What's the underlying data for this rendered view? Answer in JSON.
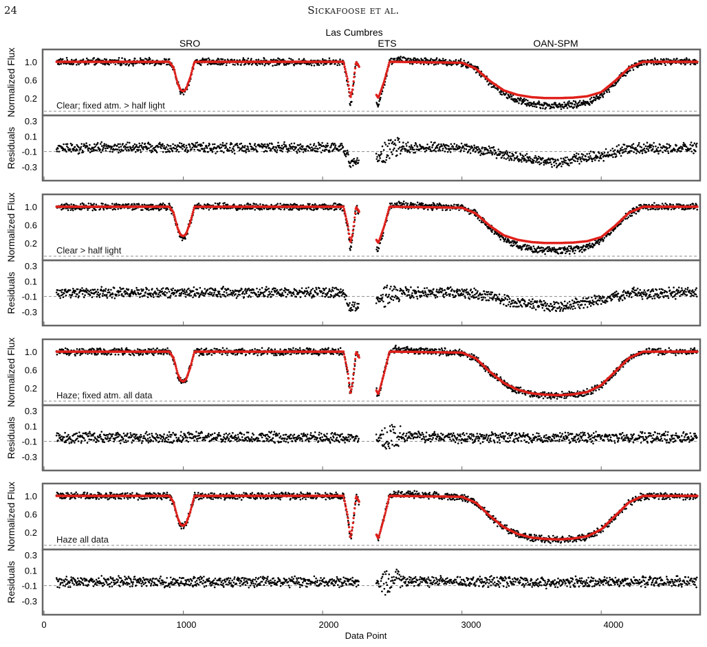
{
  "header": {
    "page_number": "24",
    "running_head": "Sickafoose et al."
  },
  "figure": {
    "site_labels": [
      "Las Cumbres",
      "SRO",
      "ETS",
      "OAN-SPM"
    ],
    "xlabel": "Data Point",
    "x_ticks": [
      "0",
      "1000",
      "2000",
      "3000",
      "4000"
    ],
    "flux_ylabel": "Normalized Flux",
    "resid_ylabel": "Residuals",
    "flux_ticks": [
      "1.0",
      "0.6",
      "0.2"
    ],
    "resid_ticks": [
      "0.3",
      "0.1",
      "-0.1",
      "-0.3"
    ],
    "panel_labels": [
      "Clear; fixed atm.  > half light",
      "Clear  > half light",
      "Haze; fixed atm. all data",
      "Haze all data"
    ]
  },
  "colors": {
    "data": "#000000",
    "model": "#e0201b",
    "frame": "#666666",
    "dash": "#888888"
  },
  "chart_data": [
    {
      "type": "scatter",
      "title": "Clear; fixed atm.  > half light",
      "xlabel": "",
      "ylabel": "Normalized Flux",
      "xlim": [
        0,
        4700
      ],
      "ylim": [
        0.0,
        1.15
      ],
      "series": [
        {
          "kind": "data",
          "x": [
            100,
            900,
            930,
            960,
            980,
            1000,
            1020,
            1050,
            1080,
            2150,
            2180,
            2200,
            2215,
            2240,
            2400,
            2440,
            2480,
            2520,
            3000,
            3100,
            3200,
            3300,
            3400,
            3500,
            3600,
            3700,
            3800,
            3900,
            4000,
            4100,
            4200,
            4300,
            4700
          ],
          "y": [
            1.0,
            1.0,
            0.85,
            0.5,
            0.36,
            0.33,
            0.38,
            0.65,
            1.0,
            1.0,
            0.55,
            0.05,
            0.3,
            1.0,
            0.05,
            0.5,
            1.0,
            1.05,
            0.98,
            0.85,
            0.55,
            0.3,
            0.15,
            0.07,
            0.04,
            0.03,
            0.05,
            0.1,
            0.25,
            0.55,
            0.85,
            1.0,
            1.0
          ]
        },
        {
          "kind": "model",
          "x": [
            100,
            900,
            930,
            960,
            980,
            1000,
            1020,
            1050,
            1080,
            2150,
            2180,
            2200,
            2215,
            2240,
            2400,
            2440,
            2480,
            2520,
            3000,
            3100,
            3200,
            3300,
            3400,
            3500,
            3600,
            3700,
            3800,
            3900,
            4000,
            4100,
            4200,
            4300,
            4700
          ],
          "y": [
            1.0,
            1.0,
            0.87,
            0.52,
            0.38,
            0.35,
            0.4,
            0.66,
            1.0,
            1.0,
            0.6,
            0.2,
            0.4,
            1.0,
            0.2,
            0.55,
            1.0,
            1.0,
            0.98,
            0.85,
            0.58,
            0.37,
            0.27,
            0.22,
            0.2,
            0.2,
            0.21,
            0.24,
            0.33,
            0.58,
            0.87,
            1.0,
            1.0
          ]
        },
        {
          "kind": "residual",
          "x": [
            100,
            900,
            1000,
            2150,
            2200,
            2400,
            2500,
            3000,
            3200,
            3400,
            3600,
            3700,
            3800,
            4000,
            4200,
            4700
          ],
          "y": [
            -0.05,
            -0.05,
            -0.05,
            -0.05,
            -0.25,
            -0.15,
            -0.05,
            -0.05,
            -0.1,
            -0.18,
            -0.22,
            -0.24,
            -0.2,
            -0.15,
            -0.06,
            -0.05
          ]
        }
      ]
    },
    {
      "type": "scatter",
      "title": "Clear  > half light",
      "xlabel": "",
      "ylabel": "Normalized Flux",
      "xlim": [
        0,
        4700
      ],
      "ylim": [
        0.0,
        1.15
      ],
      "series": [
        {
          "kind": "data",
          "x": [
            100,
            900,
            930,
            960,
            980,
            1000,
            1020,
            1050,
            1080,
            2150,
            2180,
            2200,
            2215,
            2240,
            2400,
            2440,
            2480,
            2520,
            3000,
            3100,
            3200,
            3300,
            3400,
            3500,
            3600,
            3700,
            3800,
            3900,
            4000,
            4100,
            4200,
            4300,
            4700
          ],
          "y": [
            1.0,
            1.0,
            0.85,
            0.5,
            0.36,
            0.33,
            0.38,
            0.65,
            1.0,
            1.0,
            0.55,
            0.05,
            0.3,
            1.0,
            0.05,
            0.5,
            1.0,
            1.05,
            0.98,
            0.85,
            0.55,
            0.3,
            0.15,
            0.07,
            0.04,
            0.03,
            0.05,
            0.1,
            0.25,
            0.55,
            0.85,
            1.0,
            1.0
          ]
        },
        {
          "kind": "model",
          "x": [
            100,
            900,
            930,
            960,
            980,
            1000,
            1020,
            1050,
            1080,
            2150,
            2180,
            2200,
            2215,
            2240,
            2400,
            2440,
            2480,
            2520,
            3000,
            3100,
            3200,
            3300,
            3400,
            3500,
            3600,
            3700,
            3800,
            3900,
            4000,
            4100,
            4200,
            4300,
            4700
          ],
          "y": [
            1.0,
            1.0,
            0.87,
            0.52,
            0.38,
            0.35,
            0.4,
            0.66,
            1.0,
            1.0,
            0.6,
            0.2,
            0.4,
            1.0,
            0.2,
            0.55,
            1.0,
            1.0,
            0.98,
            0.85,
            0.58,
            0.37,
            0.27,
            0.22,
            0.2,
            0.2,
            0.21,
            0.24,
            0.33,
            0.58,
            0.87,
            1.0,
            1.0
          ]
        },
        {
          "kind": "residual",
          "x": [
            100,
            900,
            1000,
            2150,
            2200,
            2400,
            2500,
            3000,
            3200,
            3400,
            3600,
            3700,
            3800,
            4000,
            4200,
            4700
          ],
          "y": [
            -0.05,
            -0.05,
            -0.05,
            -0.05,
            -0.25,
            -0.15,
            -0.05,
            -0.05,
            -0.1,
            -0.18,
            -0.22,
            -0.24,
            -0.2,
            -0.15,
            -0.06,
            -0.05
          ]
        }
      ]
    },
    {
      "type": "scatter",
      "title": "Haze; fixed atm. all data",
      "xlabel": "",
      "ylabel": "Normalized Flux",
      "xlim": [
        0,
        4700
      ],
      "ylim": [
        0.0,
        1.15
      ],
      "series": [
        {
          "kind": "data",
          "x": [
            100,
            900,
            930,
            960,
            980,
            1000,
            1020,
            1050,
            1080,
            2150,
            2180,
            2200,
            2215,
            2240,
            2400,
            2440,
            2480,
            2520,
            3000,
            3100,
            3200,
            3300,
            3400,
            3500,
            3600,
            3700,
            3800,
            3900,
            4000,
            4100,
            4200,
            4300,
            4700
          ],
          "y": [
            1.0,
            1.0,
            0.85,
            0.5,
            0.36,
            0.33,
            0.38,
            0.65,
            1.0,
            1.0,
            0.55,
            0.05,
            0.3,
            1.0,
            0.05,
            0.5,
            1.0,
            1.05,
            0.98,
            0.85,
            0.55,
            0.3,
            0.15,
            0.07,
            0.04,
            0.03,
            0.05,
            0.1,
            0.25,
            0.55,
            0.85,
            1.0,
            1.0
          ]
        },
        {
          "kind": "model",
          "x": [
            100,
            900,
            930,
            960,
            980,
            1000,
            1020,
            1050,
            1080,
            2150,
            2180,
            2200,
            2215,
            2240,
            2400,
            2440,
            2480,
            2520,
            3000,
            3100,
            3200,
            3300,
            3400,
            3500,
            3600,
            3700,
            3800,
            3900,
            4000,
            4100,
            4200,
            4300,
            4700
          ],
          "y": [
            1.0,
            1.0,
            0.86,
            0.51,
            0.37,
            0.34,
            0.39,
            0.65,
            1.0,
            1.0,
            0.56,
            0.06,
            0.32,
            1.0,
            0.06,
            0.5,
            1.0,
            1.0,
            0.98,
            0.85,
            0.56,
            0.31,
            0.16,
            0.08,
            0.05,
            0.04,
            0.06,
            0.11,
            0.26,
            0.56,
            0.86,
            1.0,
            1.0
          ]
        },
        {
          "kind": "residual",
          "x": [
            100,
            900,
            1000,
            2150,
            2200,
            2400,
            2500,
            3000,
            3200,
            3400,
            3600,
            3700,
            3800,
            4000,
            4200,
            4700
          ],
          "y": [
            -0.05,
            -0.05,
            -0.05,
            -0.05,
            -0.05,
            -0.08,
            -0.03,
            -0.05,
            -0.05,
            -0.05,
            -0.06,
            -0.06,
            -0.05,
            -0.05,
            -0.05,
            -0.05
          ]
        }
      ]
    },
    {
      "type": "scatter",
      "title": "Haze all data",
      "xlabel": "Data Point",
      "ylabel": "Normalized Flux",
      "xlim": [
        0,
        4700
      ],
      "ylim": [
        0.0,
        1.15
      ],
      "series": [
        {
          "kind": "data",
          "x": [
            100,
            900,
            930,
            960,
            980,
            1000,
            1020,
            1050,
            1080,
            2150,
            2180,
            2200,
            2215,
            2240,
            2400,
            2440,
            2480,
            2520,
            3000,
            3100,
            3200,
            3300,
            3400,
            3500,
            3600,
            3700,
            3800,
            3900,
            4000,
            4100,
            4200,
            4300,
            4700
          ],
          "y": [
            1.0,
            1.0,
            0.85,
            0.5,
            0.36,
            0.33,
            0.38,
            0.65,
            1.0,
            1.0,
            0.55,
            0.05,
            0.3,
            1.0,
            0.05,
            0.5,
            1.0,
            1.05,
            0.98,
            0.85,
            0.55,
            0.3,
            0.15,
            0.07,
            0.04,
            0.03,
            0.05,
            0.1,
            0.25,
            0.55,
            0.85,
            1.0,
            1.0
          ]
        },
        {
          "kind": "model",
          "x": [
            100,
            900,
            930,
            960,
            980,
            1000,
            1020,
            1050,
            1080,
            2150,
            2180,
            2200,
            2215,
            2240,
            2400,
            2440,
            2480,
            2520,
            3000,
            3100,
            3200,
            3300,
            3400,
            3500,
            3600,
            3700,
            3800,
            3900,
            4000,
            4100,
            4200,
            4300,
            4700
          ],
          "y": [
            1.0,
            1.0,
            0.86,
            0.51,
            0.37,
            0.34,
            0.39,
            0.65,
            1.0,
            1.0,
            0.56,
            0.06,
            0.32,
            1.0,
            0.06,
            0.5,
            1.0,
            1.0,
            0.98,
            0.85,
            0.56,
            0.31,
            0.16,
            0.08,
            0.05,
            0.04,
            0.06,
            0.11,
            0.26,
            0.56,
            0.86,
            1.0,
            1.0
          ]
        },
        {
          "kind": "residual",
          "x": [
            100,
            900,
            1000,
            2150,
            2200,
            2400,
            2500,
            3000,
            3200,
            3400,
            3600,
            3700,
            3800,
            4000,
            4200,
            4700
          ],
          "y": [
            -0.05,
            -0.05,
            -0.05,
            -0.05,
            -0.05,
            -0.08,
            -0.03,
            -0.05,
            -0.05,
            -0.05,
            -0.06,
            -0.06,
            -0.05,
            -0.05,
            -0.05,
            -0.05
          ]
        }
      ]
    }
  ]
}
